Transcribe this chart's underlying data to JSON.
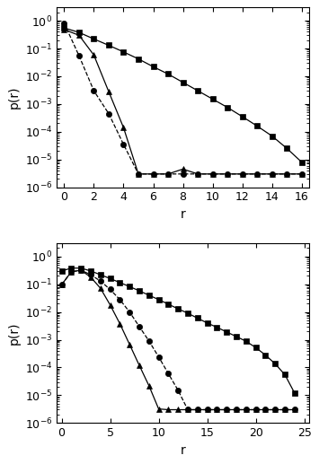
{
  "top": {
    "xlim": [
      -0.5,
      16.5
    ],
    "ylim": [
      1e-06,
      3
    ],
    "xticks": [
      0,
      2,
      4,
      6,
      8,
      10,
      12,
      14,
      16
    ],
    "squares": {
      "x": [
        0,
        1,
        2,
        3,
        4,
        5,
        6,
        7,
        8,
        9,
        10,
        11,
        12,
        13,
        14,
        15,
        16
      ],
      "y": [
        0.55,
        0.38,
        0.22,
        0.13,
        0.075,
        0.042,
        0.022,
        0.012,
        0.006,
        0.003,
        0.0015,
        0.00075,
        0.00035,
        0.00016,
        7e-05,
        2.5e-05,
        8e-06
      ],
      "ls": "-"
    },
    "triangles": {
      "x": [
        0,
        1,
        2,
        3,
        4,
        5,
        6,
        7,
        8,
        9,
        10,
        11,
        12,
        13,
        14,
        15,
        16
      ],
      "y": [
        0.48,
        0.3,
        0.058,
        0.0028,
        0.00014,
        3e-06,
        3e-06,
        3e-06,
        4.5e-06,
        3e-06,
        3e-06,
        3e-06,
        3e-06,
        3e-06,
        3e-06,
        3e-06,
        3e-06
      ],
      "ls": "-"
    },
    "circles": {
      "x": [
        0,
        1,
        2,
        3,
        4,
        5,
        6,
        7,
        8,
        9,
        10,
        11,
        12,
        13,
        14,
        15,
        16
      ],
      "y": [
        0.82,
        0.055,
        0.003,
        0.00045,
        3.5e-05,
        3e-06,
        3e-06,
        3e-06,
        3e-06,
        3e-06,
        3e-06,
        3e-06,
        3e-06,
        3e-06,
        3e-06,
        3e-06,
        3e-06
      ],
      "ls": "--"
    }
  },
  "bottom": {
    "xlim": [
      -0.5,
      25.5
    ],
    "ylim": [
      1e-06,
      3
    ],
    "xticks": [
      0,
      5,
      10,
      15,
      20,
      25
    ],
    "squares": {
      "x": [
        0,
        1,
        2,
        3,
        4,
        5,
        6,
        7,
        8,
        9,
        10,
        11,
        12,
        13,
        14,
        15,
        16,
        17,
        18,
        19,
        20,
        21,
        22,
        23,
        24
      ],
      "y": [
        0.3,
        0.38,
        0.38,
        0.3,
        0.22,
        0.16,
        0.115,
        0.082,
        0.058,
        0.04,
        0.028,
        0.019,
        0.013,
        0.009,
        0.006,
        0.004,
        0.0028,
        0.0019,
        0.0013,
        0.00088,
        0.00052,
        0.00028,
        0.000135,
        5.5e-05,
        1.2e-05
      ],
      "ls": "-"
    },
    "circles": {
      "x": [
        0,
        1,
        2,
        3,
        4,
        5,
        6,
        7,
        8,
        9,
        10,
        11,
        12,
        13,
        14,
        15,
        16,
        17,
        18,
        19,
        20,
        21,
        22,
        23,
        24
      ],
      "y": [
        0.095,
        0.28,
        0.32,
        0.22,
        0.13,
        0.065,
        0.028,
        0.01,
        0.003,
        0.0009,
        0.00024,
        6e-05,
        1.5e-05,
        3e-06,
        3e-06,
        3e-06,
        3e-06,
        3e-06,
        3e-06,
        3e-06,
        3e-06,
        3e-06,
        3e-06,
        3e-06,
        3e-06
      ],
      "ls": "--"
    },
    "triangles": {
      "x": [
        0,
        1,
        2,
        3,
        4,
        5,
        6,
        7,
        8,
        9,
        10,
        11,
        12,
        13,
        14,
        15,
        16,
        17,
        18,
        19,
        20,
        21,
        22,
        23,
        24
      ],
      "y": [
        0.095,
        0.28,
        0.32,
        0.18,
        0.072,
        0.018,
        0.0038,
        0.00068,
        0.00012,
        2.2e-05,
        3.2e-06,
        3e-06,
        3e-06,
        3e-06,
        3e-06,
        3e-06,
        3e-06,
        3e-06,
        3e-06,
        3e-06,
        3e-06,
        3e-06,
        3e-06,
        3e-06,
        3e-06
      ],
      "ls": "-"
    }
  },
  "marker_size": 4.5,
  "line_width": 0.9,
  "ylabel": "p(r)",
  "xlabel": "r",
  "tick_labelsize": 9,
  "label_fontsize": 10
}
